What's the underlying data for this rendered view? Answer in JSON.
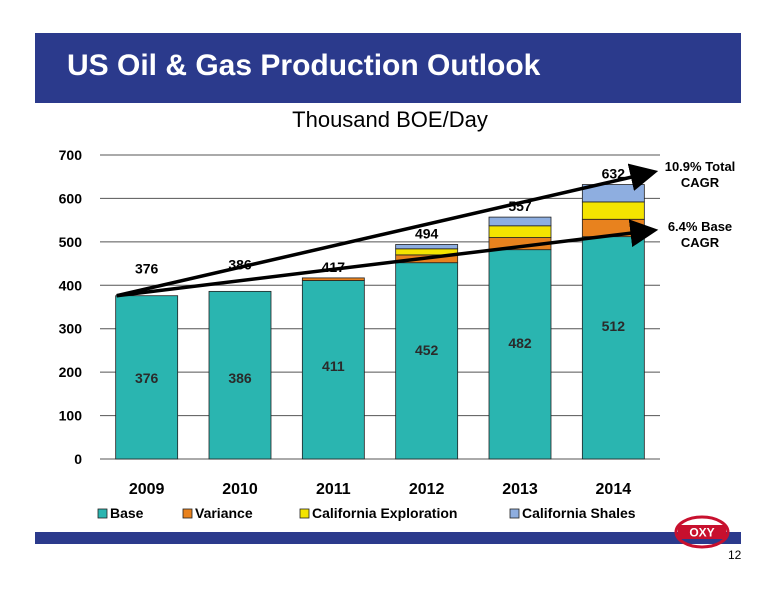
{
  "slide": {
    "title": "US Oil & Gas Production Outlook",
    "page_number": "12"
  },
  "logo": {
    "text": "OXY",
    "color": "#c8102e"
  },
  "colors": {
    "title_bar": "#2b3a8c",
    "base": "#2ab5b0",
    "variance": "#e8821e",
    "california_exploration": "#f4e400",
    "california_shales": "#8eaee0"
  },
  "chart_data": {
    "type": "bar",
    "stacked": true,
    "title": "Thousand BOE/Day",
    "categories": [
      "2009",
      "2010",
      "2011",
      "2012",
      "2013",
      "2014"
    ],
    "series": [
      {
        "name": "Base",
        "values": [
          376,
          386,
          411,
          452,
          482,
          512
        ]
      },
      {
        "name": "Variance",
        "values": [
          0,
          0,
          6,
          18,
          28,
          40
        ]
      },
      {
        "name": "California Exploration",
        "values": [
          0,
          0,
          0,
          14,
          27,
          40
        ]
      },
      {
        "name": "California Shales",
        "values": [
          0,
          0,
          0,
          10,
          20,
          40
        ]
      }
    ],
    "totals": [
      376,
      386,
      417,
      494,
      557,
      632
    ],
    "ylim": [
      0,
      700
    ],
    "yticks": [
      0,
      100,
      200,
      300,
      400,
      500,
      600,
      700
    ],
    "grid": true,
    "legend": "bottom",
    "annotations": [
      {
        "text_lines": [
          "10.9% Total",
          "CAGR"
        ],
        "from": [
          "2009",
          376
        ],
        "to": [
          "2014",
          632
        ]
      },
      {
        "text_lines": [
          "6.4% Base",
          "CAGR"
        ],
        "from": [
          "2009",
          376
        ],
        "to": [
          "2014",
          512
        ]
      }
    ]
  }
}
